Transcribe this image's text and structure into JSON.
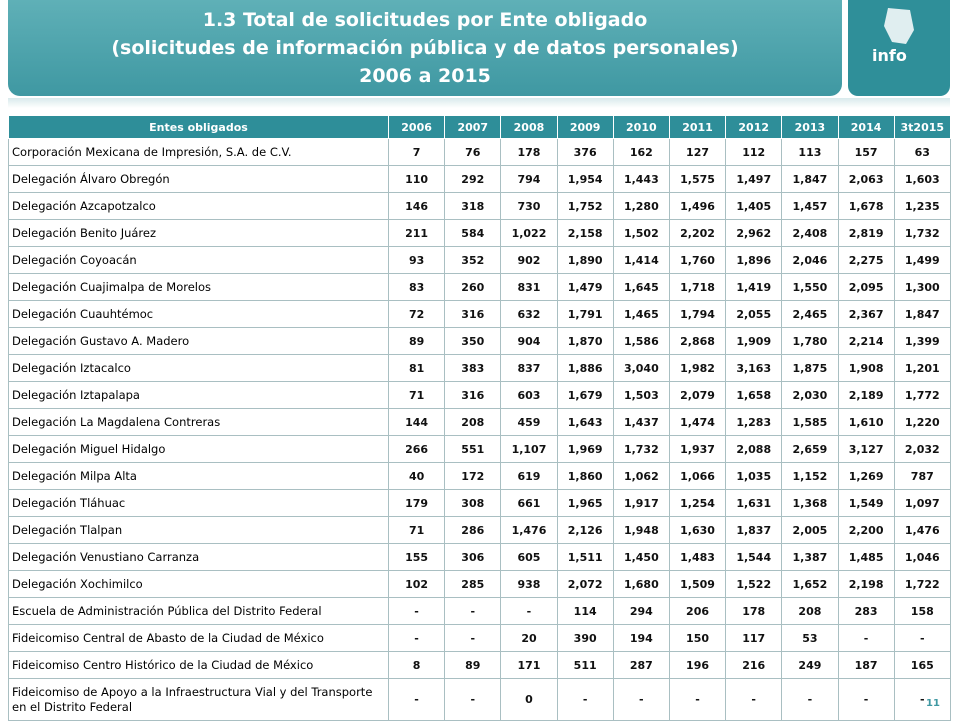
{
  "header": {
    "title": "1.3 Total de solicitudes por Ente obligado",
    "subtitle": "(solicitudes de información pública y de datos personales)",
    "period": "2006 a 2015"
  },
  "logo": "info",
  "table": {
    "columns": [
      "Entes obligados",
      "2006",
      "2007",
      "2008",
      "2009",
      "2010",
      "2011",
      "2012",
      "2013",
      "2014",
      "3t2015"
    ],
    "rows": [
      [
        "Corporación Mexicana de Impresión, S.A. de C.V.",
        "7",
        "76",
        "178",
        "376",
        "162",
        "127",
        "112",
        "113",
        "157",
        "63"
      ],
      [
        "Delegación Álvaro Obregón",
        "110",
        "292",
        "794",
        "1,954",
        "1,443",
        "1,575",
        "1,497",
        "1,847",
        "2,063",
        "1,603"
      ],
      [
        "Delegación Azcapotzalco",
        "146",
        "318",
        "730",
        "1,752",
        "1,280",
        "1,496",
        "1,405",
        "1,457",
        "1,678",
        "1,235"
      ],
      [
        "Delegación Benito Juárez",
        "211",
        "584",
        "1,022",
        "2,158",
        "1,502",
        "2,202",
        "2,962",
        "2,408",
        "2,819",
        "1,732"
      ],
      [
        "Delegación Coyoacán",
        "93",
        "352",
        "902",
        "1,890",
        "1,414",
        "1,760",
        "1,896",
        "2,046",
        "2,275",
        "1,499"
      ],
      [
        "Delegación Cuajimalpa de Morelos",
        "83",
        "260",
        "831",
        "1,479",
        "1,645",
        "1,718",
        "1,419",
        "1,550",
        "2,095",
        "1,300"
      ],
      [
        "Delegación Cuauhtémoc",
        "72",
        "316",
        "632",
        "1,791",
        "1,465",
        "1,794",
        "2,055",
        "2,465",
        "2,367",
        "1,847"
      ],
      [
        "Delegación Gustavo A. Madero",
        "89",
        "350",
        "904",
        "1,870",
        "1,586",
        "2,868",
        "1,909",
        "1,780",
        "2,214",
        "1,399"
      ],
      [
        "Delegación Iztacalco",
        "81",
        "383",
        "837",
        "1,886",
        "3,040",
        "1,982",
        "3,163",
        "1,875",
        "1,908",
        "1,201"
      ],
      [
        "Delegación Iztapalapa",
        "71",
        "316",
        "603",
        "1,679",
        "1,503",
        "2,079",
        "1,658",
        "2,030",
        "2,189",
        "1,772"
      ],
      [
        "Delegación La Magdalena Contreras",
        "144",
        "208",
        "459",
        "1,643",
        "1,437",
        "1,474",
        "1,283",
        "1,585",
        "1,610",
        "1,220"
      ],
      [
        "Delegación Miguel Hidalgo",
        "266",
        "551",
        "1,107",
        "1,969",
        "1,732",
        "1,937",
        "2,088",
        "2,659",
        "3,127",
        "2,032"
      ],
      [
        "Delegación Milpa Alta",
        "40",
        "172",
        "619",
        "1,860",
        "1,062",
        "1,066",
        "1,035",
        "1,152",
        "1,269",
        "787"
      ],
      [
        "Delegación Tláhuac",
        "179",
        "308",
        "661",
        "1,965",
        "1,917",
        "1,254",
        "1,631",
        "1,368",
        "1,549",
        "1,097"
      ],
      [
        "Delegación Tlalpan",
        "71",
        "286",
        "1,476",
        "2,126",
        "1,948",
        "1,630",
        "1,837",
        "2,005",
        "2,200",
        "1,476"
      ],
      [
        "Delegación Venustiano Carranza",
        "155",
        "306",
        "605",
        "1,511",
        "1,450",
        "1,483",
        "1,544",
        "1,387",
        "1,485",
        "1,046"
      ],
      [
        "Delegación Xochimilco",
        "102",
        "285",
        "938",
        "2,072",
        "1,680",
        "1,509",
        "1,522",
        "1,652",
        "2,198",
        "1,722"
      ],
      [
        "Escuela de Administración Pública del Distrito Federal",
        "-",
        "-",
        "-",
        "114",
        "294",
        "206",
        "178",
        "208",
        "283",
        "158"
      ],
      [
        "Fideicomiso Central de Abasto de la Ciudad de México",
        "-",
        "-",
        "20",
        "390",
        "194",
        "150",
        "117",
        "53",
        "-",
        "-"
      ],
      [
        "Fideicomiso Centro Histórico de la Ciudad de México",
        "8",
        "89",
        "171",
        "511",
        "287",
        "196",
        "216",
        "249",
        "187",
        "165"
      ],
      [
        "Fideicomiso de Apoyo a la Infraestructura Vial y del Transporte en el Distrito Federal",
        "-",
        "-",
        "0",
        "-",
        "-",
        "-",
        "-",
        "-",
        "-",
        "-"
      ]
    ]
  },
  "page_number": "11"
}
